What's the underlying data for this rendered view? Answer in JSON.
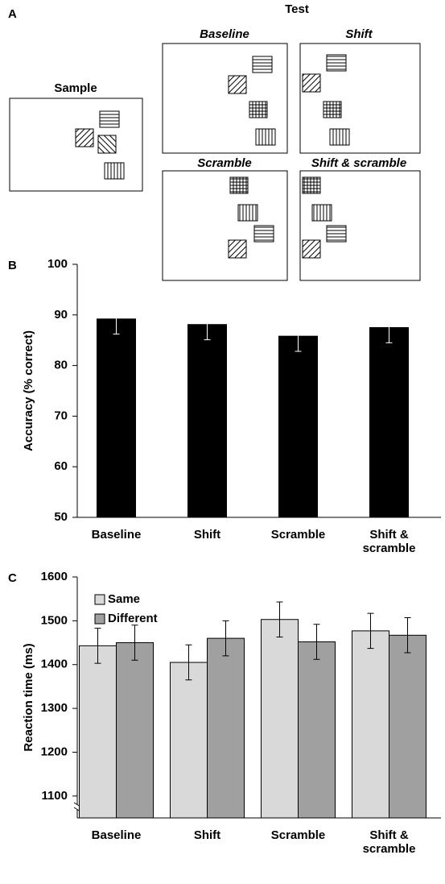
{
  "diagram": {
    "label": "A",
    "test_label": "Test",
    "sample_label": "Sample",
    "panels": [
      "Baseline",
      "Shift",
      "Scramble",
      "Shift & scramble"
    ]
  },
  "chart_data": [
    {
      "type": "bar",
      "label": "B",
      "ylabel": "Accuracy (% correct)",
      "categories": [
        "Baseline",
        "Shift",
        "Scramble",
        "Shift & scramble"
      ],
      "values": [
        89.2,
        88.1,
        85.8,
        87.5
      ],
      "errors": [
        3.0,
        3.0,
        3.0,
        3.0
      ],
      "color": "#000000",
      "ylim": [
        50,
        100
      ],
      "yticks": [
        50,
        60,
        70,
        80,
        90,
        100
      ]
    },
    {
      "type": "bar",
      "label": "C",
      "ylabel": "Reaction time (ms)",
      "categories": [
        "Baseline",
        "Shift",
        "Scramble",
        "Shift & scramble"
      ],
      "series": [
        {
          "name": "Same",
          "color": "#d9d9d9",
          "values": [
            1443,
            1405,
            1503,
            1477
          ],
          "errors": [
            40,
            40,
            40,
            40
          ]
        },
        {
          "name": "Different",
          "color": "#a0a0a0",
          "values": [
            1450,
            1460,
            1452,
            1467
          ],
          "errors": [
            40,
            40,
            40,
            40
          ]
        }
      ],
      "ylim": [
        1050,
        1600
      ],
      "yticks": [
        1100,
        1200,
        1300,
        1400,
        1500,
        1600
      ],
      "axis_break": true,
      "legend": "upper left"
    }
  ]
}
